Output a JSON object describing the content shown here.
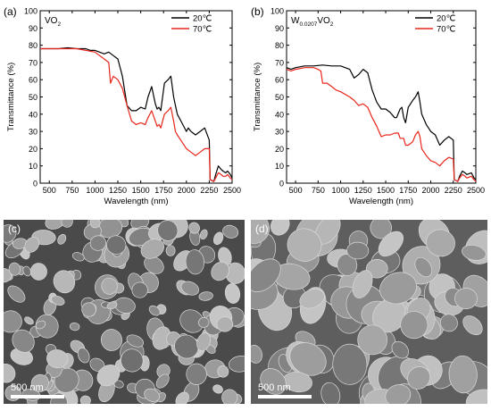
{
  "chart_data": [
    {
      "type": "line",
      "panel_label": "(a)",
      "sample_label": "VO",
      "sample_sub": "2",
      "xlabel": "Wavelength (nm)",
      "ylabel": "Transmittance (%)",
      "xlim": [
        400,
        2500
      ],
      "ylim": [
        0,
        100
      ],
      "xticks": [
        500,
        750,
        1000,
        1250,
        1500,
        1750,
        2000,
        2250,
        2500
      ],
      "yticks": [
        0,
        10,
        20,
        30,
        40,
        50,
        60,
        70,
        80,
        90,
        100
      ],
      "legend_position": "top-right",
      "series": [
        {
          "name": "20℃",
          "color": "#000000",
          "x": [
            400,
            500,
            600,
            700,
            800,
            900,
            950,
            1000,
            1050,
            1100,
            1150,
            1200,
            1250,
            1300,
            1350,
            1400,
            1450,
            1500,
            1550,
            1580,
            1620,
            1660,
            1680,
            1700,
            1720,
            1760,
            1800,
            1830,
            1860,
            1880,
            1900,
            1950,
            2000,
            2020,
            2050,
            2100,
            2150,
            2200,
            2250,
            2260,
            2300,
            2320,
            2350,
            2380,
            2400,
            2430,
            2450,
            2480,
            2500
          ],
          "y": [
            78,
            78,
            78,
            78.5,
            78,
            78,
            77,
            77,
            76,
            75,
            76,
            74,
            72,
            62,
            45,
            42,
            42,
            44,
            43,
            50,
            56,
            46,
            43,
            44,
            42,
            58,
            60,
            62,
            50,
            45,
            40,
            35,
            30,
            32,
            30,
            28,
            30,
            32,
            25,
            2,
            1,
            5,
            10,
            8,
            7,
            6,
            7,
            5,
            3
          ]
        },
        {
          "name": "70℃",
          "color": "#e8251a",
          "x": [
            400,
            500,
            600,
            700,
            800,
            900,
            1000,
            1050,
            1100,
            1150,
            1170,
            1200,
            1250,
            1300,
            1350,
            1400,
            1450,
            1500,
            1550,
            1580,
            1620,
            1660,
            1680,
            1700,
            1720,
            1760,
            1800,
            1830,
            1860,
            1880,
            1900,
            1950,
            2000,
            2050,
            2100,
            2150,
            2200,
            2250,
            2260,
            2300,
            2320,
            2350,
            2380,
            2400,
            2430,
            2450,
            2480,
            2500
          ],
          "y": [
            78,
            78,
            78,
            78,
            78,
            77,
            76,
            74,
            72,
            70,
            58,
            62,
            60,
            55,
            45,
            36,
            34,
            35,
            34,
            38,
            42,
            36,
            33,
            34,
            32,
            40,
            42,
            44,
            36,
            30,
            28,
            24,
            20,
            18,
            16,
            18,
            20,
            20,
            2,
            1,
            3,
            6,
            5,
            4,
            4,
            5,
            3,
            2
          ]
        }
      ]
    },
    {
      "type": "line",
      "panel_label": "(b)",
      "sample_label": "W",
      "sample_sub": "0.0207",
      "sample_label_2": "VO",
      "sample_sub_2": "2",
      "xlabel": "Wavelength (nm)",
      "ylabel": "Transmittance (%)",
      "xlim": [
        400,
        2500
      ],
      "ylim": [
        0,
        100
      ],
      "xticks": [
        500,
        750,
        1000,
        1250,
        1500,
        1750,
        2000,
        2250,
        2500
      ],
      "yticks": [
        0,
        10,
        20,
        30,
        40,
        50,
        60,
        70,
        80,
        90,
        100
      ],
      "legend_position": "top-right",
      "series": [
        {
          "name": "20℃",
          "color": "#000000",
          "x": [
            400,
            450,
            500,
            600,
            700,
            800,
            900,
            1000,
            1050,
            1100,
            1150,
            1200,
            1250,
            1300,
            1350,
            1400,
            1450,
            1500,
            1550,
            1600,
            1620,
            1660,
            1680,
            1700,
            1720,
            1750,
            1800,
            1830,
            1860,
            1880,
            1900,
            1950,
            2000,
            2050,
            2100,
            2150,
            2200,
            2250,
            2260,
            2300,
            2320,
            2350,
            2380,
            2400,
            2450,
            2480,
            2500
          ],
          "y": [
            67,
            66,
            67,
            68,
            68,
            68.5,
            68,
            68,
            67,
            66,
            61,
            63,
            66,
            64,
            54,
            47,
            43,
            43,
            41,
            38,
            38,
            43,
            44,
            38,
            35,
            44,
            48,
            50,
            53,
            47,
            40,
            34,
            30,
            28,
            22,
            25,
            27,
            25,
            2,
            1,
            4,
            7,
            6,
            5,
            6,
            3,
            2
          ]
        },
        {
          "name": "70℃",
          "color": "#e8251a",
          "x": [
            400,
            450,
            500,
            600,
            700,
            750,
            780,
            800,
            850,
            900,
            950,
            1000,
            1100,
            1150,
            1200,
            1250,
            1300,
            1350,
            1400,
            1450,
            1500,
            1550,
            1600,
            1640,
            1660,
            1680,
            1700,
            1720,
            1750,
            1800,
            1830,
            1860,
            1880,
            1900,
            1950,
            2000,
            2050,
            2100,
            2150,
            2200,
            2250,
            2260,
            2300,
            2320,
            2350,
            2380,
            2400,
            2450,
            2480,
            2500
          ],
          "y": [
            66,
            65,
            66,
            67,
            67,
            66,
            65,
            58,
            58,
            56,
            54,
            53,
            50,
            48,
            45,
            46,
            44,
            38,
            33,
            27,
            28,
            28,
            29,
            29,
            26,
            26,
            26,
            22,
            22,
            24,
            28,
            30,
            27,
            20,
            16,
            13,
            12,
            10,
            13,
            15,
            14,
            2,
            1,
            3,
            5,
            4,
            3,
            4,
            2,
            1
          ]
        }
      ]
    }
  ],
  "sem_panels": [
    {
      "label": "(c)",
      "scale_bar": "500 nm"
    },
    {
      "label": "(d)",
      "scale_bar": "500 nm"
    }
  ]
}
